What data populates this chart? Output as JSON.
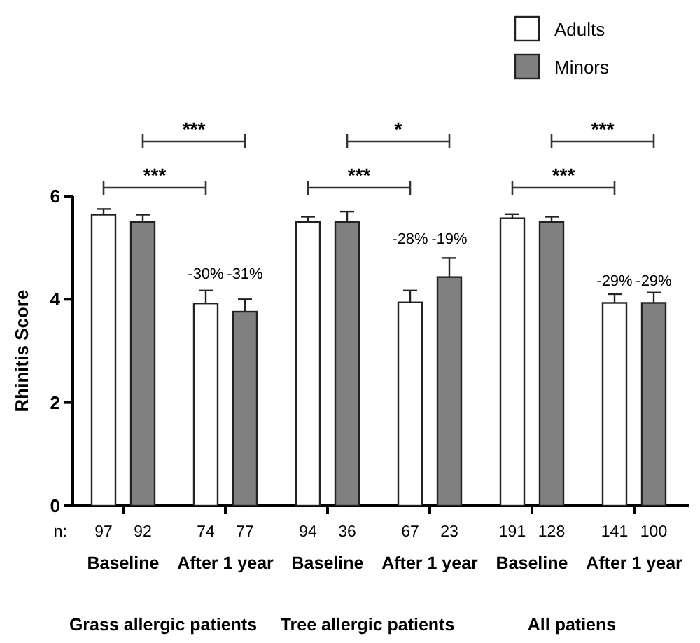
{
  "chart_data": {
    "type": "bar",
    "ylabel": "Rhinitis Score",
    "categories": [
      "Baseline",
      "After 1 year",
      "Baseline",
      "After 1 year",
      "Baseline",
      "After 1 year"
    ],
    "series": [
      {
        "name": "Adults",
        "color": "#ffffff",
        "values": [
          5.64,
          3.92,
          5.5,
          3.94,
          5.57,
          3.93
        ],
        "errors": [
          [
            5.64,
            5.75
          ],
          [
            3.92,
            4.17
          ],
          [
            5.5,
            5.6
          ],
          [
            3.94,
            4.17
          ],
          [
            5.57,
            5.65
          ],
          [
            3.93,
            4.1
          ]
        ]
      },
      {
        "name": "Minors",
        "color": "#808080",
        "values": [
          5.5,
          3.76,
          5.5,
          4.43,
          5.5,
          3.93
        ],
        "errors": [
          [
            5.5,
            5.64
          ],
          [
            3.76,
            4.0
          ],
          [
            5.5,
            5.7
          ],
          [
            4.43,
            4.8
          ],
          [
            5.5,
            5.6
          ],
          [
            3.93,
            4.13
          ]
        ]
      }
    ],
    "ylim": [
      0,
      6
    ],
    "yticks": [
      0,
      2,
      4,
      6
    ],
    "grid": false,
    "legend": "top right",
    "annotations": [
      "n:",
      "97",
      "92",
      "74",
      "77",
      "94",
      "36",
      "67",
      "23",
      "191",
      "128",
      "141",
      "100",
      "Grass allergic patients",
      "Tree allergic patients",
      "All patiens",
      "***",
      "***",
      "*",
      "***",
      "***",
      "***",
      "-30%",
      "-31%",
      "-28%",
      "-19%",
      "-29%",
      "-29%"
    ]
  }
}
